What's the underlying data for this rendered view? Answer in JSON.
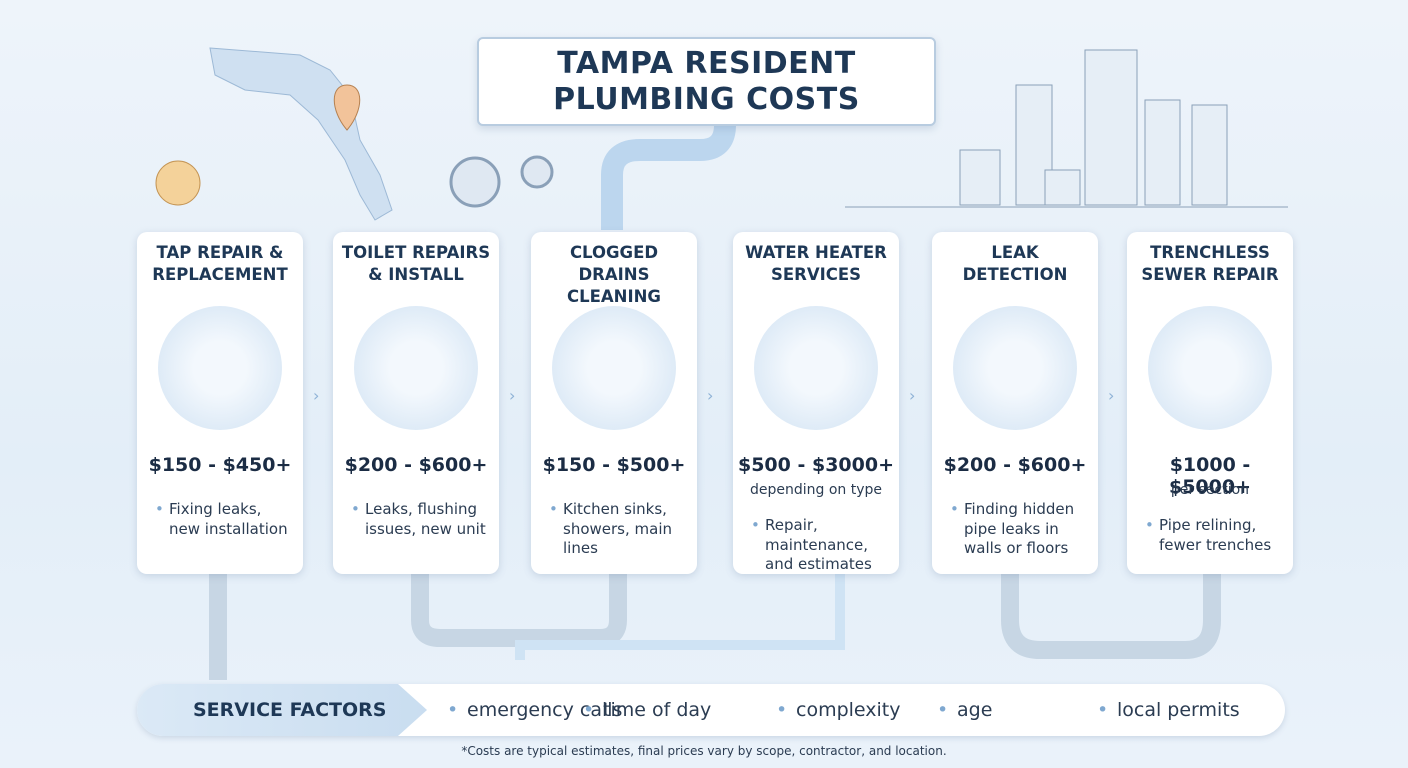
{
  "header": {
    "title_lines": [
      "TAMPA RESIDENT",
      "PLUMBING COSTS"
    ]
  },
  "cards": [
    {
      "title": "TAP REPAIR & REPLACEMENT",
      "price": "$150 - $450+",
      "description": "Fixing leaks, new installation"
    },
    {
      "title": "TOILET REPAIRS & INSTALL",
      "price": "$200 - $600+",
      "description": "Leaks, flushing issues, new unit"
    },
    {
      "title": "CLOGGED DRAINS CLEANING",
      "price": "$150 - $500+",
      "description": "Kitchen sinks, showers, main lines"
    },
    {
      "title": "WATER HEATER SERVICES",
      "price": "$500 - $3000+",
      "note": "depending on type",
      "description": "Repair, maintenance, and estimates"
    },
    {
      "title": "LEAK DETECTION",
      "price": "$200 - $600+",
      "description": "Finding hidden pipe leaks in walls or floors"
    },
    {
      "title": "TRENCHLESS SEWER REPAIR",
      "price": "$1000 - $5000+",
      "note": "per section",
      "description": "Pipe relining, fewer trenches"
    }
  ],
  "factors": {
    "label": "SERVICE FACTORS",
    "items": [
      "emergency calls",
      "time of day",
      "complexity",
      "age",
      "local permits"
    ]
  },
  "footnote": "*Costs are typical estimates, final prices vary by scope, contractor, and location."
}
